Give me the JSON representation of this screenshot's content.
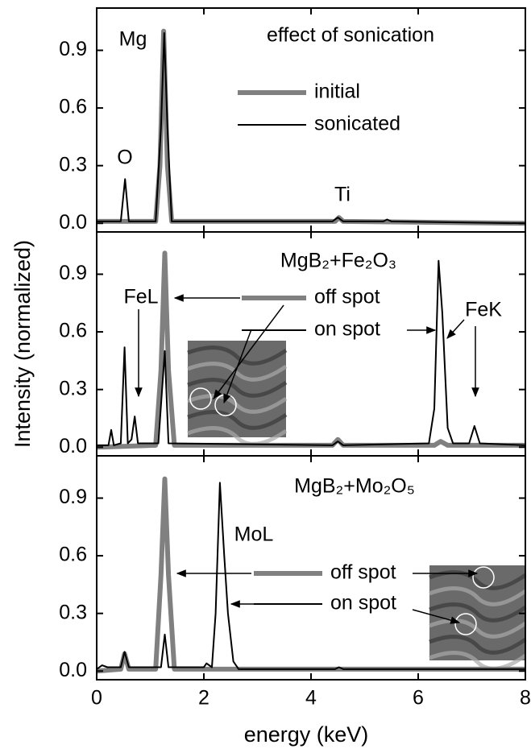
{
  "chart_data": [
    {
      "type": "line",
      "xlim": [
        0,
        8
      ],
      "ylim": [
        -0.045,
        1.12
      ],
      "xticks": [
        0,
        2,
        4,
        6,
        8
      ],
      "yticks": [
        {
          "value": 0,
          "label": "0.0"
        },
        0.3,
        0.6,
        0.9
      ],
      "annotations": [
        "effect of sonication",
        "Mg",
        "O",
        "Ti"
      ],
      "series": [
        {
          "name": "initial",
          "color": "#808080",
          "x": [
            0,
            1.1,
            1.18,
            1.25,
            1.32,
            1.4,
            4.45,
            4.52,
            4.6,
            8
          ],
          "values": [
            0.01,
            0.01,
            0.3,
            1.0,
            0.3,
            0.01,
            0.01,
            0.03,
            0.01,
            0.0
          ]
        },
        {
          "name": "sonicated",
          "color": "#000000",
          "x": [
            0,
            0.45,
            0.53,
            0.6,
            1.1,
            1.2,
            1.26,
            1.32,
            1.4,
            4.4,
            4.5,
            4.6,
            5.35,
            5.42,
            5.5,
            8
          ],
          "values": [
            0.01,
            0.01,
            0.23,
            0.01,
            0.01,
            0.5,
            0.99,
            0.5,
            0.01,
            0.01,
            0.03,
            0.01,
            0.01,
            0.02,
            0.01,
            0.0
          ]
        }
      ]
    },
    {
      "type": "line",
      "xlim": [
        0,
        8
      ],
      "ylim": [
        -0.045,
        1.12
      ],
      "xticks": [
        0,
        2,
        4,
        6,
        8
      ],
      "yticks": [
        {
          "value": 0,
          "label": "0.0"
        },
        0.3,
        0.6,
        0.9
      ],
      "ylabel": "Intensity (normalized)",
      "annotations": [
        "MgB₂+Fe₂O₃",
        "FeL",
        "FeK"
      ],
      "series": [
        {
          "name": "off spot",
          "color": "#808080",
          "x": [
            0,
            1.1,
            1.2,
            1.27,
            1.34,
            1.45,
            4.4,
            4.5,
            4.6,
            6.3,
            6.42,
            6.55,
            8
          ],
          "values": [
            0.0,
            0.01,
            0.4,
            1.01,
            0.4,
            0.01,
            0.01,
            0.04,
            0.01,
            0.01,
            0.03,
            0.01,
            0.01
          ]
        },
        {
          "name": "on spot",
          "color": "#000000",
          "x": [
            0,
            0.22,
            0.27,
            0.32,
            0.45,
            0.52,
            0.58,
            0.65,
            0.71,
            0.77,
            1.15,
            1.27,
            1.34,
            4.4,
            4.5,
            4.6,
            6.2,
            6.3,
            6.38,
            6.45,
            6.55,
            6.65,
            6.95,
            7.05,
            7.15,
            8
          ],
          "values": [
            0.01,
            0.01,
            0.09,
            0.01,
            0.02,
            0.52,
            0.02,
            0.04,
            0.16,
            0.02,
            0.02,
            0.5,
            0.02,
            0.01,
            0.03,
            0.01,
            0.02,
            0.2,
            0.97,
            0.7,
            0.1,
            0.02,
            0.02,
            0.11,
            0.02,
            0.01
          ]
        }
      ]
    },
    {
      "type": "line",
      "xlim": [
        0,
        8
      ],
      "ylim": [
        -0.045,
        1.12
      ],
      "xticks": [
        0,
        2,
        4,
        6,
        8
      ],
      "yticks": [
        {
          "value": 0,
          "label": "0.0"
        },
        0.3,
        0.6,
        0.9
      ],
      "xlabel": "energy (keV)",
      "annotations": [
        "MgB₂+Mo₂O₅",
        "MoL"
      ],
      "series": [
        {
          "name": "off spot",
          "color": "#808080",
          "x": [
            0,
            0.45,
            0.52,
            0.6,
            1.1,
            1.2,
            1.27,
            1.34,
            1.45,
            8
          ],
          "values": [
            0.0,
            0.01,
            0.09,
            0.01,
            0.01,
            0.5,
            1.0,
            0.5,
            0.01,
            0.01
          ]
        },
        {
          "name": "on spot",
          "color": "#000000",
          "x": [
            0,
            0.1,
            0.2,
            0.45,
            0.52,
            0.6,
            1.2,
            1.27,
            1.34,
            2.0,
            2.05,
            2.15,
            2.22,
            2.3,
            2.38,
            2.45,
            2.55,
            2.65,
            4.45,
            4.52,
            4.6,
            8
          ],
          "values": [
            0.01,
            0.03,
            0.02,
            0.02,
            0.1,
            0.02,
            0.02,
            0.19,
            0.02,
            0.02,
            0.04,
            0.02,
            0.3,
            0.98,
            0.6,
            0.3,
            0.05,
            0.01,
            0.01,
            0.02,
            0.01,
            0.01
          ]
        }
      ]
    }
  ]
}
